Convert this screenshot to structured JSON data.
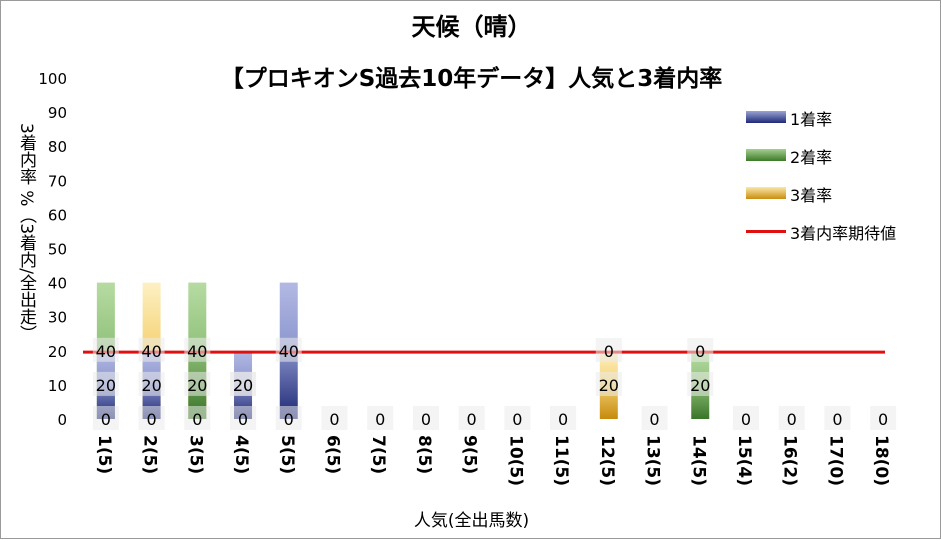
{
  "title": "天候（晴）",
  "subtitle": "【プロキオンS過去10年データ】人気と3着内率",
  "ylabel": "3着内率 %（3着内/全出走）",
  "xlabel": "人気(全出馬数)",
  "legend": {
    "s1": "1着率",
    "s2": "2着率",
    "s3": "3着率",
    "line": "3着内率期待値"
  },
  "chart_data": {
    "type": "bar",
    "stacked": true,
    "categories": [
      "1(5)",
      "2(5)",
      "3(5)",
      "4(5)",
      "5(5)",
      "6(5)",
      "7(5)",
      "8(5)",
      "9(5)",
      "10(5)",
      "11(5)",
      "12(5)",
      "13(5)",
      "14(5)",
      "15(4)",
      "16(2)",
      "17(0)",
      "18(0)"
    ],
    "series": [
      {
        "name": "3着率",
        "color": "#d9a21f",
        "values": [
          0,
          40,
          20,
          20,
          0,
          0,
          0,
          0,
          0,
          0,
          0,
          20,
          0,
          0,
          0,
          0,
          0,
          0
        ]
      },
      {
        "name": "2着率",
        "color": "#5f9a45",
        "values": [
          40,
          0,
          40,
          0,
          0,
          0,
          0,
          0,
          0,
          0,
          0,
          0,
          0,
          20,
          0,
          0,
          0,
          0
        ]
      },
      {
        "name": "1着率",
        "color": "#3a4697",
        "values": [
          20,
          20,
          0,
          20,
          40,
          0,
          0,
          0,
          0,
          0,
          0,
          0,
          0,
          0,
          0,
          0,
          0,
          0
        ]
      }
    ],
    "expected_line": {
      "name": "3着内率期待値",
      "value": 19.6,
      "color": "#e01010"
    },
    "ylim": [
      0,
      100
    ],
    "yticks": [
      0,
      10,
      20,
      30,
      40,
      50,
      60,
      70,
      80,
      90,
      100
    ],
    "grid": false,
    "legend_position": "right"
  }
}
